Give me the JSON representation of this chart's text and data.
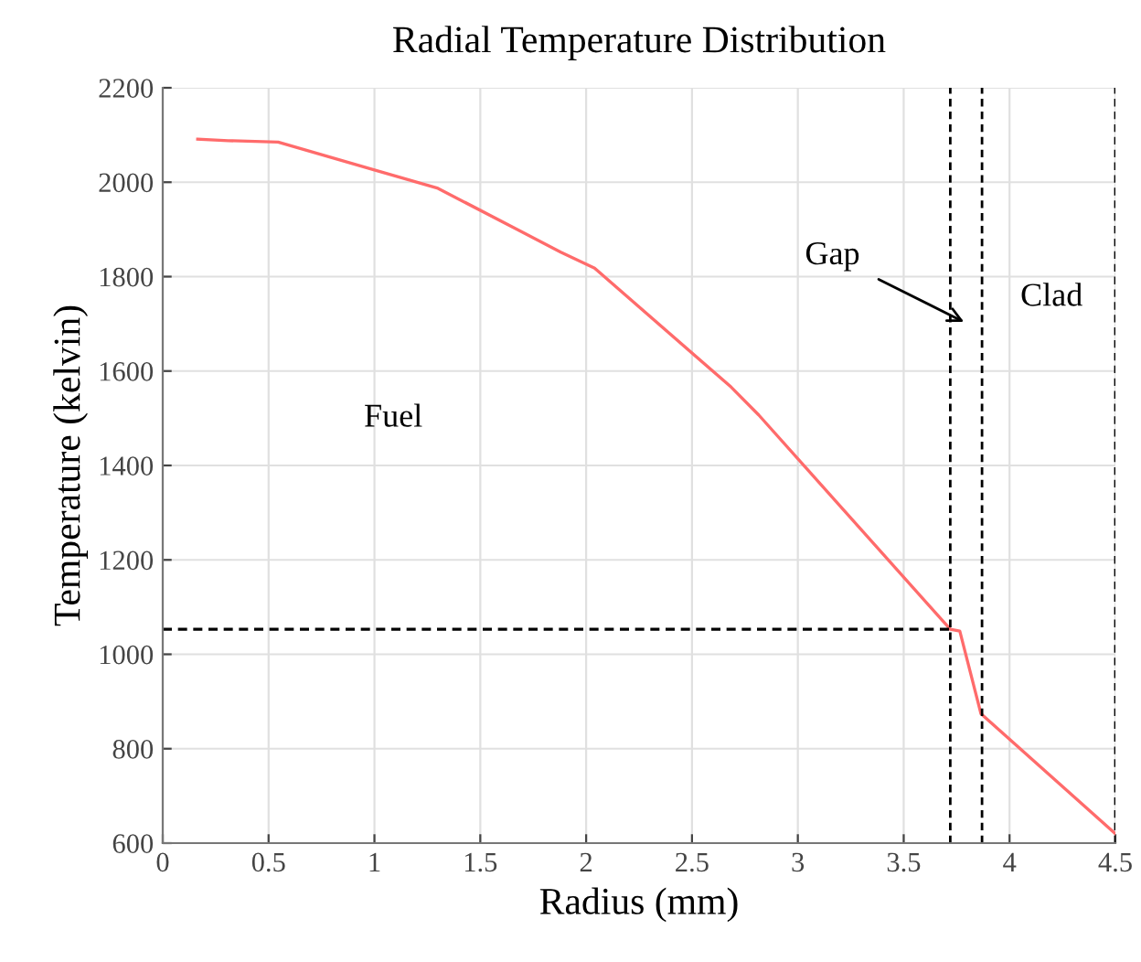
{
  "chart_data": {
    "type": "line",
    "title": "Radial Temperature Distribution",
    "xlabel": "Radius (mm)",
    "ylabel": "Temperature (kelvin)",
    "series": [
      {
        "color": "#ff6b6b",
        "x": [
          0.165,
          0.31,
          0.545,
          1.0,
          1.3,
          1.88,
          2.04,
          2.685,
          2.815,
          3.72,
          3.765,
          3.865,
          4.5
        ],
        "values": [
          2091,
          2088,
          2085,
          2026,
          1987,
          1852,
          1818,
          1566,
          1507,
          1053,
          1049,
          874,
          620
        ]
      },
      {
        "type": "line",
        "color": "#000000",
        "line_style": "dashed",
        "x": [
          0,
          3.72
        ],
        "values": [
          1053,
          1053
        ]
      }
    ],
    "ref_lines": [
      {
        "axis": "x",
        "value": 3.72,
        "color": "#000000",
        "line_style": "dashed"
      },
      {
        "axis": "x",
        "value": 3.87,
        "color": "#000000",
        "line_style": "dashed"
      },
      {
        "axis": "x",
        "value": 4.5,
        "color": "#000000",
        "line_style": "dashed"
      }
    ],
    "annotations": [
      "Gap",
      "Clad",
      "Fuel"
    ],
    "xlim": [
      0,
      4.5
    ],
    "xticks": [
      0,
      0.5,
      1,
      1.5,
      2,
      2.5,
      3,
      3.5,
      4,
      4.5
    ],
    "ylim": [
      600,
      2200
    ],
    "yticks": [
      600,
      800,
      1000,
      1200,
      1400,
      1600,
      1800,
      2000,
      2200
    ],
    "grid": true,
    "legend": false,
    "marker": "none",
    "line_style": "solid"
  }
}
